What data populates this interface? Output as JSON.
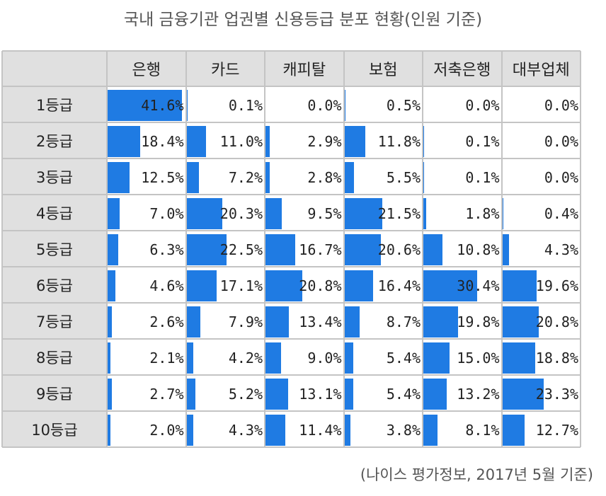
{
  "title": "국내 금융기관 업권별 신용등급 분포 현황(인원 기준)",
  "source": "(나이스 평가정보, 2017년 5월 기준)",
  "colors": {
    "bar": "#1f7be3",
    "header_bg": "#e0e0e0",
    "grid": "#c4c4c4"
  },
  "chart_data": {
    "type": "table",
    "title": "국내 금융기관 업권별 신용등급 분포 현황(인원 기준)",
    "columns": [
      "은행",
      "카드",
      "캐피탈",
      "보험",
      "저축은행",
      "대부업체"
    ],
    "rows": [
      "1등급",
      "2등급",
      "3등급",
      "4등급",
      "5등급",
      "6등급",
      "7등급",
      "8등급",
      "9등급",
      "10등급"
    ],
    "unit": "%",
    "bar_max": 42,
    "values": [
      [
        41.6,
        0.1,
        0.0,
        0.5,
        0.0,
        0.0
      ],
      [
        18.4,
        11.0,
        2.9,
        11.8,
        0.1,
        0.0
      ],
      [
        12.5,
        7.2,
        2.8,
        5.5,
        0.1,
        0.0
      ],
      [
        7.0,
        20.3,
        9.5,
        21.5,
        1.8,
        0.4
      ],
      [
        6.3,
        22.5,
        16.7,
        20.6,
        10.8,
        4.3
      ],
      [
        4.6,
        17.1,
        20.8,
        16.4,
        30.4,
        19.6
      ],
      [
        2.6,
        7.9,
        13.4,
        8.7,
        19.8,
        20.8
      ],
      [
        2.1,
        4.2,
        9.0,
        5.4,
        15.0,
        18.8
      ],
      [
        2.7,
        5.2,
        13.1,
        5.4,
        13.2,
        23.3
      ],
      [
        2.0,
        4.3,
        11.4,
        3.8,
        8.1,
        12.7
      ]
    ]
  }
}
